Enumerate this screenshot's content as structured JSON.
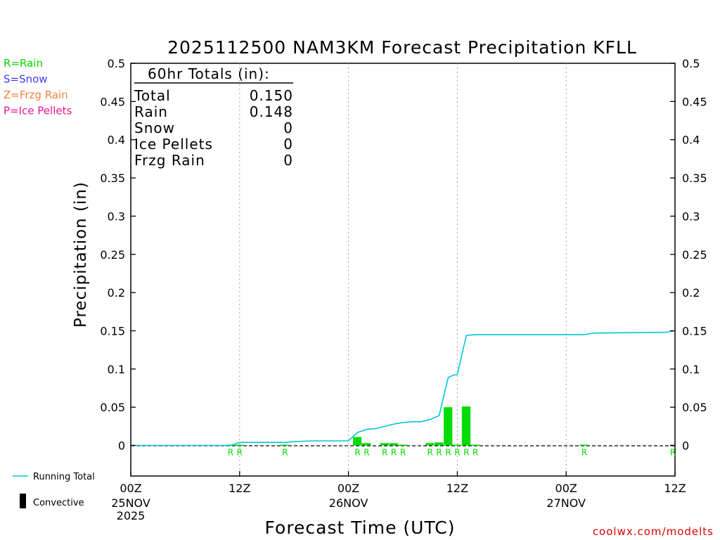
{
  "chart_data": {
    "type": "bar",
    "title": "2025112500 NAM3KM Forecast Precipitation KFLL",
    "xlabel": "Forecast Time (UTC)",
    "ylabel": "Precipitation (in)",
    "ylim": [
      -0.04,
      0.5
    ],
    "xlim_hours": [
      0,
      60
    ],
    "yticks": [
      "0.5",
      "0.45",
      "0.4",
      "0.35",
      "0.3",
      "0.25",
      "0.2",
      "0.15",
      "0.1",
      "0.05",
      "0"
    ],
    "ytick_values": [
      0.5,
      0.45,
      0.4,
      0.35,
      0.3,
      0.25,
      0.2,
      0.15,
      0.1,
      0.05,
      0
    ],
    "xticks": [
      {
        "hour": 0,
        "label": "00Z",
        "date": "25NOV",
        "year": "2025"
      },
      {
        "hour": 12,
        "label": "12Z",
        "date": "",
        "year": ""
      },
      {
        "hour": 24,
        "label": "00Z",
        "date": "26NOV",
        "year": ""
      },
      {
        "hour": 36,
        "label": "12Z",
        "date": "",
        "year": ""
      },
      {
        "hour": 48,
        "label": "00Z",
        "date": "27NOV",
        "year": ""
      },
      {
        "hour": 60,
        "label": "12Z",
        "date": "",
        "year": ""
      }
    ],
    "grid_hours": [
      12,
      24,
      36,
      48
    ],
    "precip_type_legend": [
      {
        "label": "R=Rain",
        "color": "#00dc00"
      },
      {
        "label": "S=Snow",
        "color": "#3c3cff"
      },
      {
        "label": "Z=Frzg Rain",
        "color": "#f0823c"
      },
      {
        "label": "P=Ice Pellets",
        "color": "#f0148c"
      }
    ],
    "series": [
      {
        "name": "Hourly Precipitation (Rain)",
        "kind": "bar",
        "color": "#00dc00",
        "hours": [
          11,
          12,
          17,
          25,
          26,
          28,
          29,
          30,
          33,
          34,
          35,
          36,
          37
        ],
        "values": [
          0.001,
          0.001,
          0.001,
          0.011,
          0.003,
          0.003,
          0.003,
          0.001,
          0.003,
          0.004,
          0.05,
          0.001,
          0.051
        ],
        "marker_labels": [
          "R",
          "R",
          "R",
          "R",
          "R",
          "R",
          "R",
          "R",
          "R",
          "R",
          "R",
          "R",
          "R"
        ]
      },
      {
        "name": "Hourly Precipitation (Rain, late)",
        "kind": "bar",
        "color": "#00dc00",
        "hours": [
          38,
          50,
          60
        ],
        "values": [
          0.001,
          0.001,
          0.001
        ],
        "marker_labels": [
          "R",
          "R",
          "R"
        ]
      },
      {
        "name": "Running Total",
        "kind": "line",
        "color": "#00c8d2",
        "hours": [
          0,
          11,
          12,
          17,
          18,
          20,
          24,
          25,
          26,
          27,
          29,
          30,
          31,
          32,
          33,
          34,
          35,
          35.6,
          36,
          37,
          38,
          50,
          51,
          59,
          60
        ],
        "values": [
          0,
          0,
          0.004,
          0.004,
          0.005,
          0.006,
          0.006,
          0.017,
          0.021,
          0.022,
          0.028,
          0.03,
          0.031,
          0.031,
          0.034,
          0.039,
          0.089,
          0.092,
          0.093,
          0.144,
          0.145,
          0.145,
          0.147,
          0.148,
          0.15
        ]
      }
    ],
    "totals_box": {
      "heading": "60hr Totals (in):",
      "rows": [
        {
          "label": "Total",
          "value": "0.150"
        },
        {
          "label": "Rain",
          "value": "0.148"
        },
        {
          "label": "Snow",
          "value": "0"
        },
        {
          "label": "Ice Pellets",
          "value": "0"
        },
        {
          "label": "Frzg Rain",
          "value": "0"
        }
      ]
    },
    "bottom_legend": [
      {
        "label": "Running Total",
        "symbol": "line",
        "color": "#00c8d2"
      },
      {
        "label": "Convective",
        "symbol": "bar",
        "color": "#000000"
      }
    ],
    "credit": "coolwx.com/modelts"
  }
}
